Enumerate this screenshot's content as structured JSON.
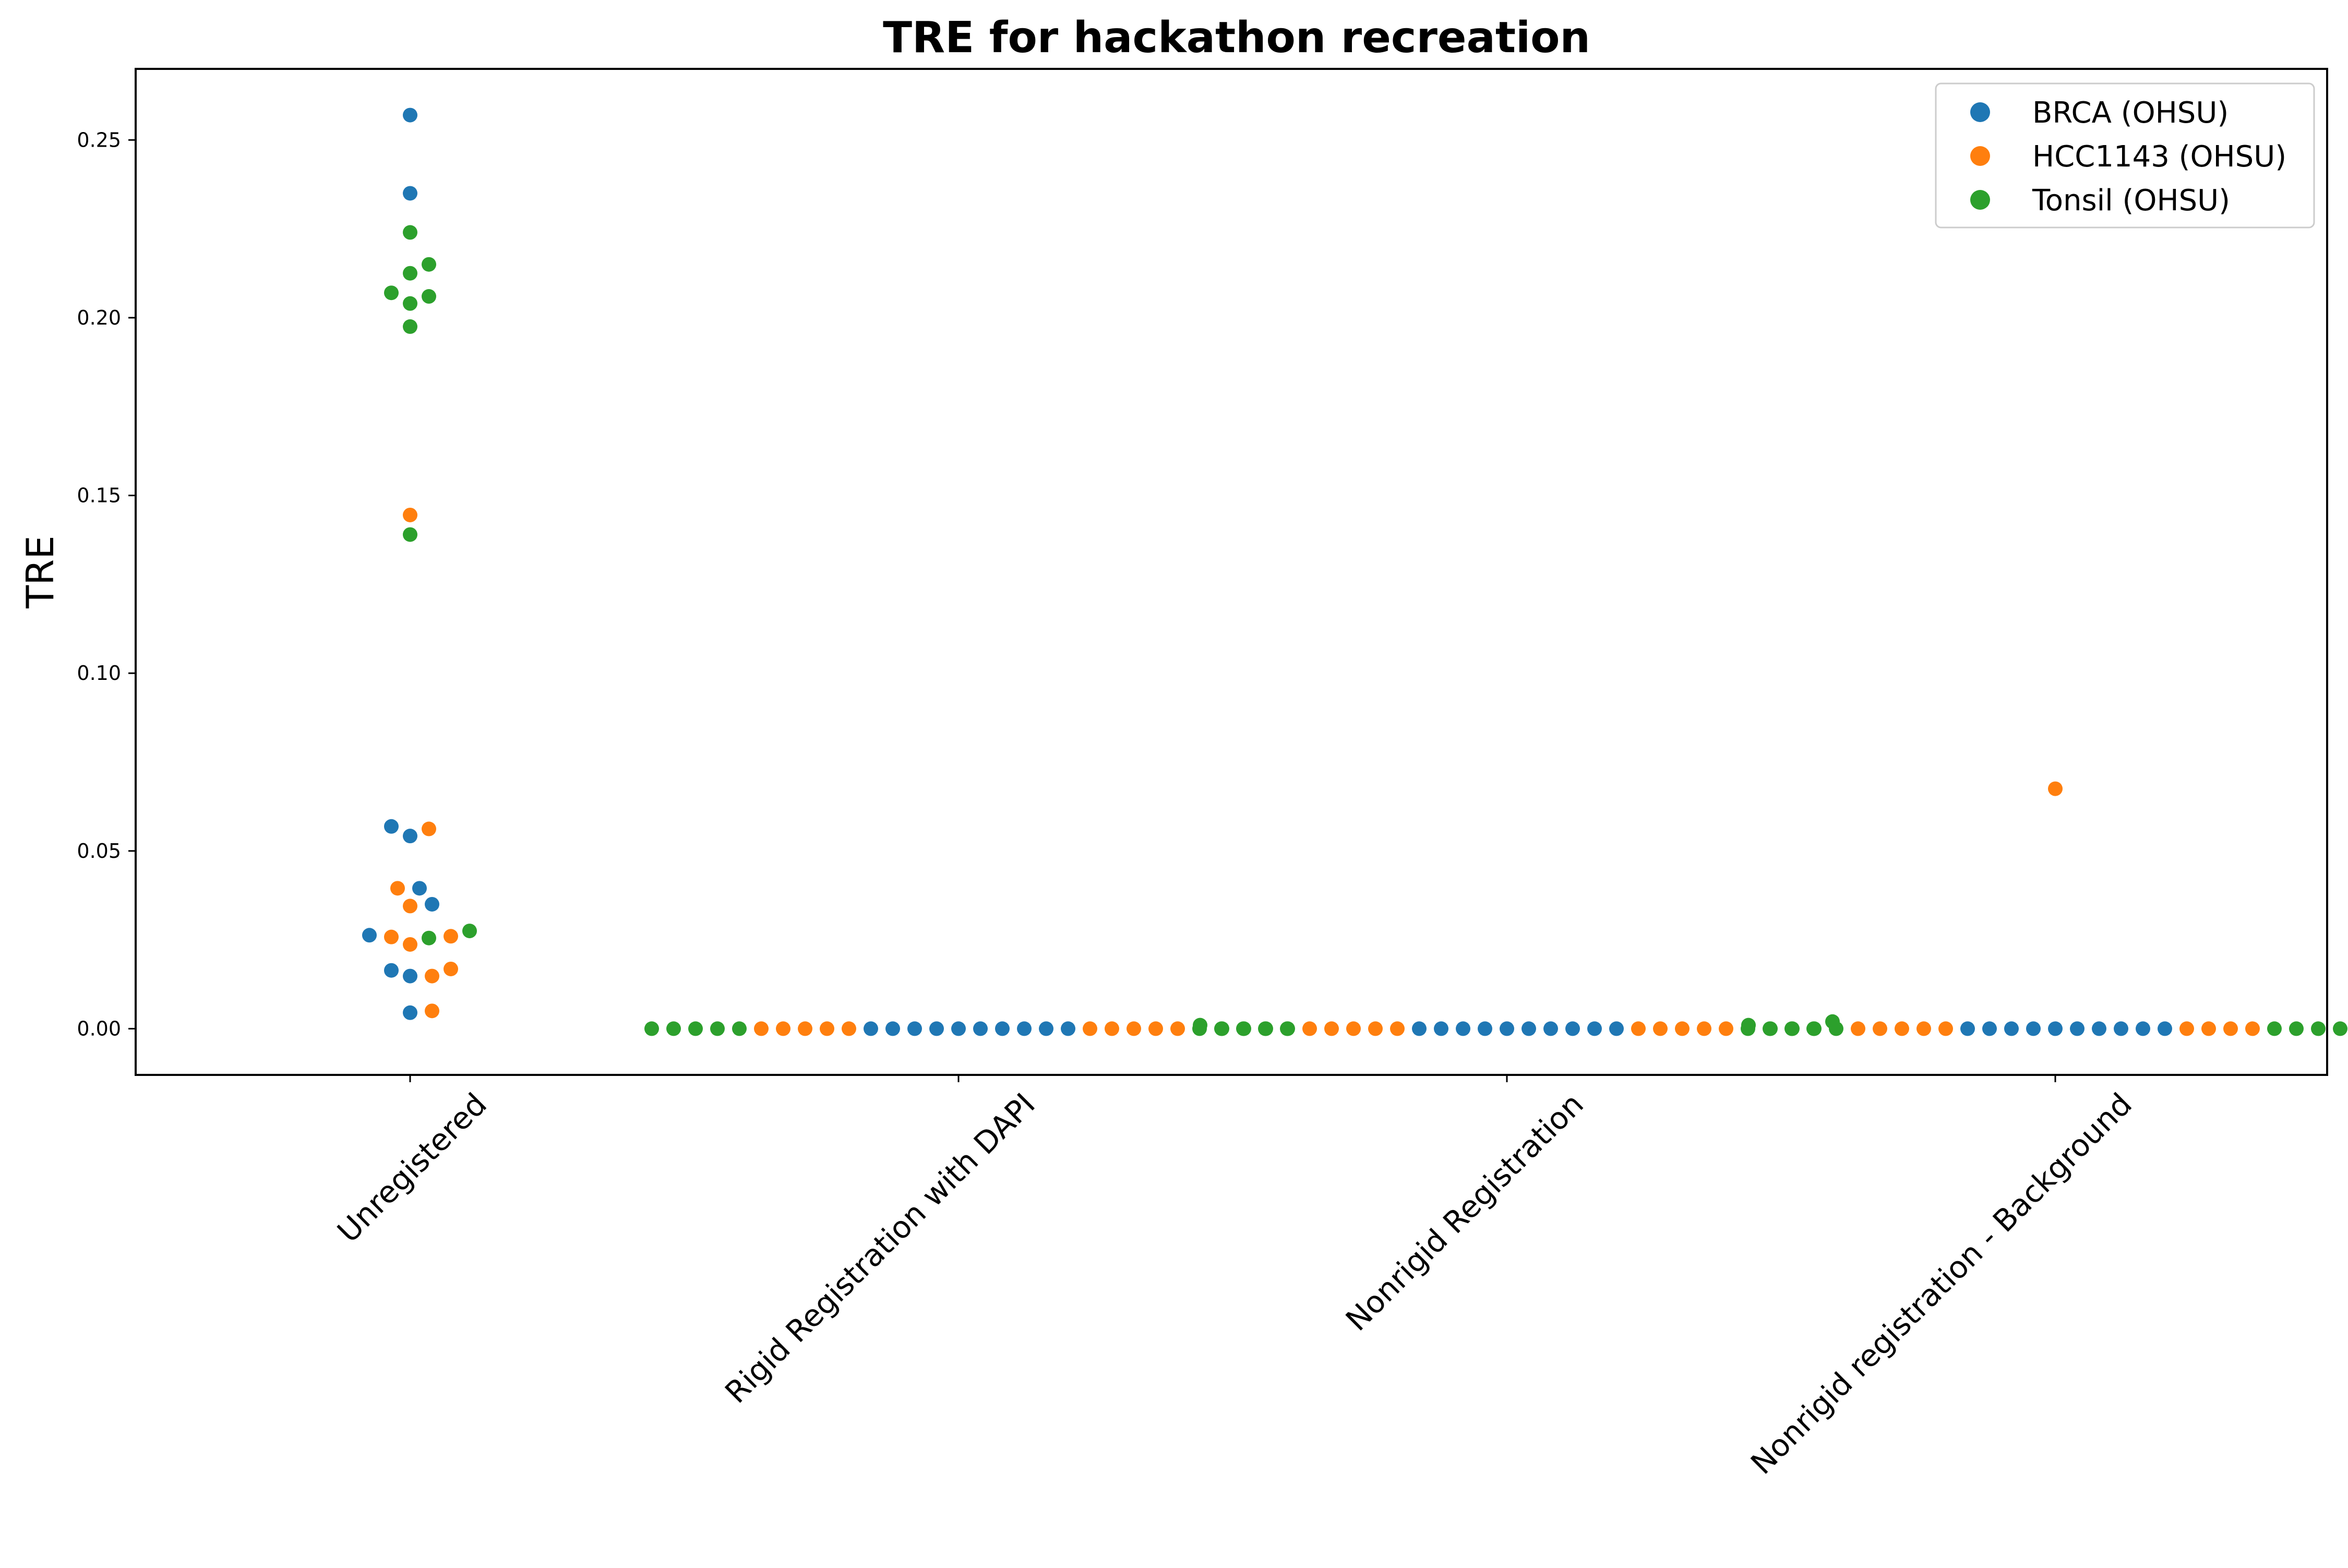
{
  "chart_data": {
    "type": "scatter",
    "title": "TRE for hackathon recreation",
    "xlabel": "",
    "ylabel": "TRE",
    "categories": [
      "Unregistered",
      "Rigid Registration with DAPI",
      "Nonrigid Registration",
      "Nonrigid registration - Background"
    ],
    "yticks": [
      "0.00",
      "0.05",
      "0.10",
      "0.15",
      "0.20",
      "0.25"
    ],
    "ylim": [
      -0.013,
      0.27
    ],
    "grid": false,
    "legend_position": "top-right",
    "colors": {
      "BRCA (OHSU)": "#1f77b4",
      "HCC1143 (OHSU)": "#ff7f0e",
      "Tonsil (OHSU)": "#2ca02c"
    },
    "series": [
      {
        "name": "BRCA (OHSU)",
        "color": "#1f77b4",
        "values": [
          [
            0.257,
            0.235,
            0.0569,
            0.0542,
            0.0395,
            0.035,
            0.0263,
            0.0164,
            0.0148,
            0.0045
          ],
          [
            0.0,
            0.0,
            0.0,
            0.0,
            0.0,
            0.0,
            0.0,
            0.0,
            0.0,
            0.0
          ],
          [
            0.0,
            0.0,
            0.0,
            0.0,
            0.0,
            0.0,
            0.0,
            0.0,
            0.0,
            0.0
          ],
          [
            0.0,
            0.0,
            0.0,
            0.0,
            0.0,
            0.0,
            0.0,
            0.0,
            0.0,
            0.0
          ]
        ]
      },
      {
        "name": "HCC1143 (OHSU)",
        "color": "#ff7f0e",
        "values": [
          [
            0.1445,
            0.0562,
            0.0395,
            0.0345,
            0.026,
            0.0258,
            0.0237,
            0.0168,
            0.0148,
            0.005
          ],
          [
            0.0,
            0.0,
            0.0,
            0.0,
            0.0,
            0.0,
            0.0,
            0.0,
            0.0,
            0.0
          ],
          [
            0.0,
            0.0,
            0.0,
            0.0,
            0.0,
            0.0,
            0.0,
            0.0,
            0.0,
            0.0
          ],
          [
            0.0675,
            0.0,
            0.0,
            0.0,
            0.0,
            0.0,
            0.0,
            0.0,
            0.0,
            0.0
          ]
        ]
      },
      {
        "name": "Tonsil (OHSU)",
        "color": "#2ca02c",
        "values": [
          [
            0.224,
            0.215,
            0.2125,
            0.207,
            0.206,
            0.204,
            0.1975,
            0.139,
            0.0275,
            0.0255
          ],
          [
            0.0,
            0.0,
            0.0,
            0.0,
            0.0,
            0.0,
            0.0,
            0.0,
            0.0,
            0.0
          ],
          [
            0.002,
            0.001,
            0.0,
            0.0,
            0.0,
            0.0,
            0.0,
            0.0,
            0.0,
            0.0
          ],
          [
            0.001,
            0.0005,
            0.0,
            0.0,
            0.0,
            0.0,
            0.0,
            0.0,
            0.0,
            0.0
          ]
        ]
      }
    ]
  }
}
